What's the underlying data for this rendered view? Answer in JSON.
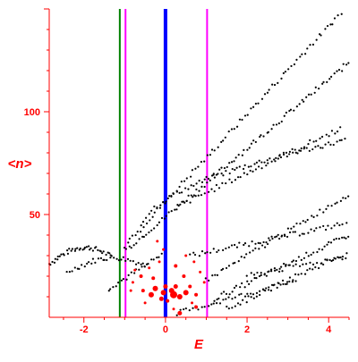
{
  "chart_data": {
    "type": "scatter",
    "title": "",
    "xlabel": "E",
    "ylabel": "<n>",
    "xlim": [
      -2.85,
      4.5
    ],
    "ylim": [
      0,
      150
    ],
    "x_ticks": [
      -2,
      0,
      2,
      4
    ],
    "y_ticks": [
      50,
      100
    ],
    "grid": false,
    "colors": {
      "axis": "#ff0000",
      "points": "#000000",
      "highlight_points": "#ff0000",
      "line_center": "#0000ff",
      "line_green": "#008000",
      "line_magenta": "#ff00ff"
    },
    "vertical_lines": [
      {
        "x": -1.12,
        "color": "#008000",
        "width": 2
      },
      {
        "x": -0.98,
        "color": "#ff00ff",
        "width": 2
      },
      {
        "x": 0.0,
        "color": "#0000ff",
        "width": 4
      },
      {
        "x": 1.02,
        "color": "#ff00ff",
        "width": 2
      }
    ],
    "bands": [
      {
        "x": [
          -2.85,
          -1.35
        ],
        "y": [
          26,
          34
        ],
        "curve": "arch",
        "count": 40
      },
      {
        "x": [
          -2.4,
          -0.5
        ],
        "y": [
          22,
          29
        ],
        "curve": "arch",
        "count": 34
      },
      {
        "x": [
          -1.4,
          -0.1
        ],
        "y": [
          14,
          30
        ],
        "curve": "linear",
        "count": 22
      },
      {
        "x": [
          -1.0,
          4.3
        ],
        "y": [
          35,
          148
        ],
        "curve": "linear",
        "count": 80
      },
      {
        "x": [
          -0.95,
          4.5
        ],
        "y": [
          33,
          124
        ],
        "curve": "linear",
        "count": 90
      },
      {
        "x": [
          -0.6,
          4.4
        ],
        "y": [
          42,
          86
        ],
        "curve": "convex",
        "count": 75
      },
      {
        "x": [
          0.3,
          4.3
        ],
        "y": [
          54,
          92
        ],
        "curve": "linear",
        "count": 55
      },
      {
        "x": [
          0.6,
          4.5
        ],
        "y": [
          30,
          46
        ],
        "curve": "linear",
        "count": 55
      },
      {
        "x": [
          1.2,
          4.5
        ],
        "y": [
          9,
          40
        ],
        "curve": "linear",
        "count": 55
      },
      {
        "x": [
          1.0,
          4.5
        ],
        "y": [
          18,
          60
        ],
        "curve": "linear",
        "count": 50
      },
      {
        "x": [
          1.5,
          4.5
        ],
        "y": [
          4,
          32
        ],
        "curve": "linear",
        "count": 45
      },
      {
        "x": [
          0.3,
          3.2
        ],
        "y": [
          2,
          18
        ],
        "curve": "linear",
        "count": 40
      },
      {
        "x": [
          2.0,
          4.5
        ],
        "y": [
          20,
          30
        ],
        "curve": "linear",
        "count": 30
      }
    ],
    "highlight_points": [
      {
        "x": -0.05,
        "y": 12,
        "size": 3
      },
      {
        "x": 0.2,
        "y": 11,
        "size": 4
      },
      {
        "x": 0.15,
        "y": 13,
        "size": 3
      },
      {
        "x": -0.25,
        "y": 14,
        "size": 3
      },
      {
        "x": 0.35,
        "y": 10,
        "size": 3
      },
      {
        "x": 0.5,
        "y": 12,
        "size": 3
      },
      {
        "x": -0.35,
        "y": 11,
        "size": 3
      },
      {
        "x": 0.0,
        "y": 15,
        "size": 2.5
      },
      {
        "x": 0.25,
        "y": 15,
        "size": 2.5
      },
      {
        "x": -0.1,
        "y": 9,
        "size": 2.5
      },
      {
        "x": 0.05,
        "y": 8,
        "size": 2
      },
      {
        "x": 0.6,
        "y": 15,
        "size": 2
      },
      {
        "x": -0.55,
        "y": 13,
        "size": 2
      },
      {
        "x": 0.75,
        "y": 11,
        "size": 2
      },
      {
        "x": 0.35,
        "y": 2,
        "size": 2.5
      },
      {
        "x": 0.75,
        "y": 5,
        "size": 2
      },
      {
        "x": -0.6,
        "y": 20,
        "size": 2
      },
      {
        "x": -0.8,
        "y": 17,
        "size": 1.5
      },
      {
        "x": -0.85,
        "y": 13,
        "size": 1.5
      },
      {
        "x": -0.4,
        "y": 24,
        "size": 1.5
      },
      {
        "x": 0.25,
        "y": 25,
        "size": 2
      },
      {
        "x": 0.5,
        "y": 30,
        "size": 1.5
      },
      {
        "x": 0.7,
        "y": 27,
        "size": 1.5
      },
      {
        "x": 0.85,
        "y": 22,
        "size": 1.5
      },
      {
        "x": -0.15,
        "y": 27,
        "size": 1.5
      },
      {
        "x": -0.05,
        "y": 33,
        "size": 1.5
      },
      {
        "x": -0.2,
        "y": 37,
        "size": 1.5
      },
      {
        "x": 0.95,
        "y": 17,
        "size": 1.5
      },
      {
        "x": -0.75,
        "y": 23,
        "size": 1.5
      },
      {
        "x": -0.5,
        "y": 7,
        "size": 1.5
      },
      {
        "x": 0.65,
        "y": 7,
        "size": 1.5
      },
      {
        "x": 0.45,
        "y": 20,
        "size": 2
      },
      {
        "x": -0.3,
        "y": 19,
        "size": 2
      },
      {
        "x": 0.2,
        "y": 4,
        "size": 1.5
      }
    ]
  }
}
